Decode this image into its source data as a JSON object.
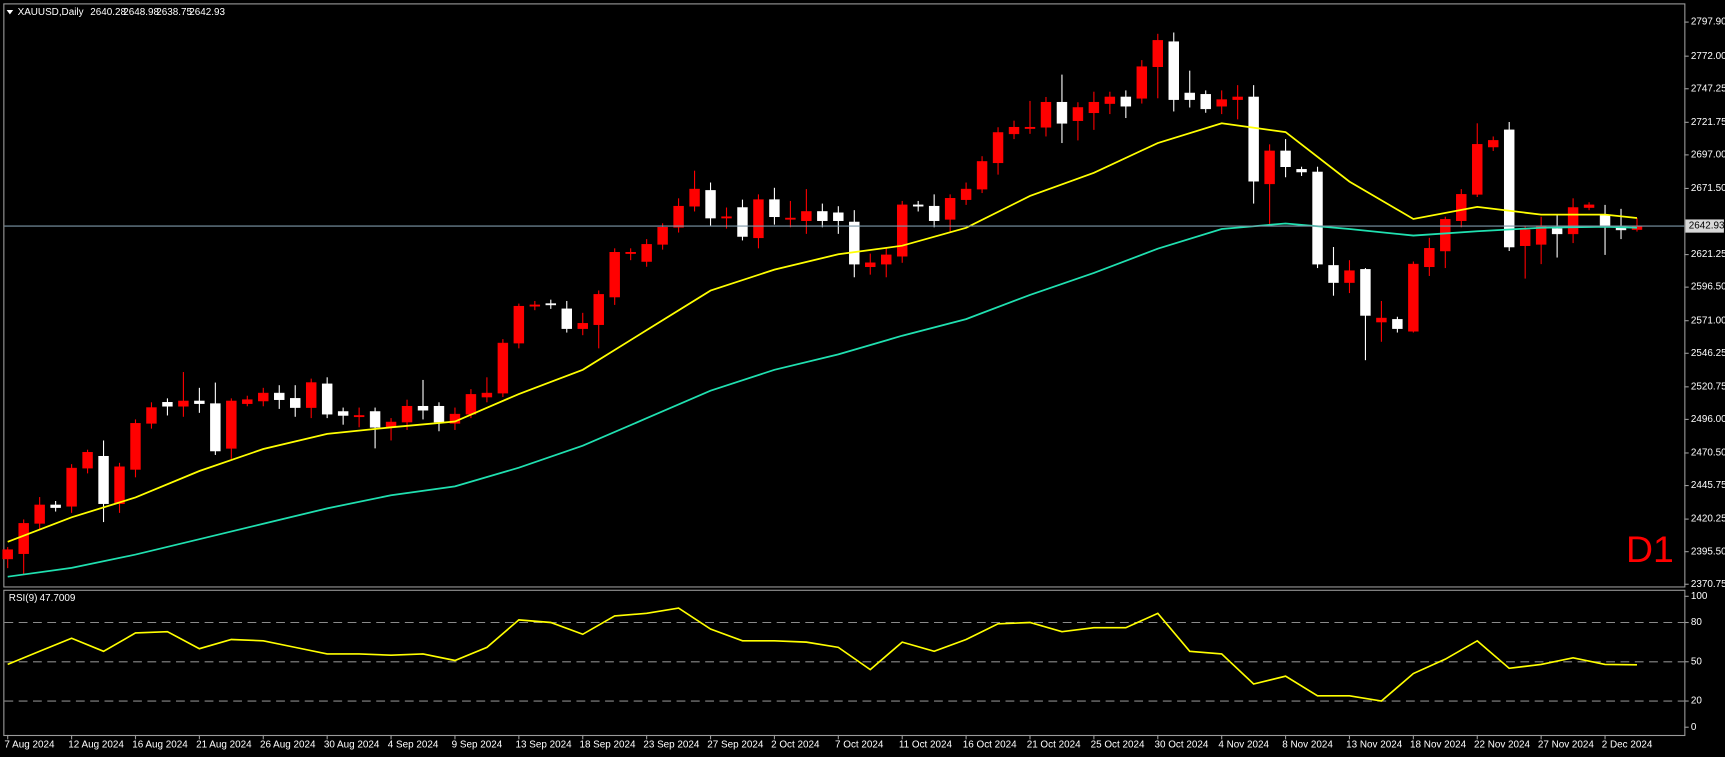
{
  "chart_data": [
    {
      "type": "candlestick",
      "title": "XAUUSD,Daily",
      "annotation": "D1",
      "annotation_color": "#ff0000",
      "up_color": "#ff0000",
      "down_color": "#ffffff",
      "last_price_color": "#7d97a8",
      "categories": [
        "7 Aug 2024",
        null,
        null,
        null,
        "12 Aug 2024",
        null,
        null,
        null,
        "16 Aug 2024",
        null,
        null,
        null,
        "21 Aug 2024",
        null,
        null,
        null,
        "26 Aug 2024",
        null,
        null,
        null,
        "30 Aug 2024",
        null,
        null,
        null,
        "4 Sep 2024",
        null,
        null,
        null,
        "9 Sep 2024",
        null,
        null,
        null,
        "13 Sep 2024",
        null,
        null,
        null,
        "18 Sep 2024",
        null,
        null,
        null,
        "23 Sep 2024",
        null,
        null,
        null,
        "27 Sep 2024",
        null,
        null,
        null,
        "2 Oct 2024",
        null,
        null,
        null,
        "7 Oct 2024",
        null,
        null,
        null,
        "11 Oct 2024",
        null,
        null,
        null,
        "16 Oct 2024",
        null,
        null,
        null,
        "21 Oct 2024",
        null,
        null,
        null,
        "25 Oct 2024",
        null,
        null,
        null,
        "30 Oct 2024",
        null,
        null,
        null,
        "4 Nov 2024",
        null,
        null,
        null,
        "8 Nov 2024",
        null,
        null,
        null,
        "13 Nov 2024",
        null,
        null,
        null,
        "18 Nov 2024",
        null,
        null,
        null,
        "22 Nov 2024",
        null,
        null,
        null,
        "27 Nov 2024",
        null,
        null,
        null,
        "2 Dec 2024",
        null,
        null
      ],
      "open": [
        2390,
        2394,
        2417,
        2431,
        2430,
        2459,
        2468,
        2432,
        2458,
        2493,
        2509,
        2506,
        2510,
        2508,
        2474,
        2508,
        2510,
        2516,
        2512,
        2505,
        2523,
        2502,
        2498,
        2502,
        2490,
        2494,
        2506,
        2506,
        2493,
        2500,
        2513,
        2516,
        2554,
        2582,
        2584,
        2580,
        2565,
        2568,
        2589,
        2622,
        2616,
        2629,
        2642,
        2658,
        2670,
        2649,
        2657,
        2634,
        2663,
        2648,
        2647,
        2654,
        2653,
        2646,
        2612,
        2614,
        2620,
        2659,
        2658,
        2648,
        2663,
        2671,
        2691,
        2713,
        2717,
        2718,
        2737,
        2723,
        2729,
        2736,
        2741,
        2740,
        2764,
        2783,
        2744,
        2743,
        2734,
        2739,
        2741,
        2675,
        2700,
        2686,
        2684,
        2613,
        2600,
        2610,
        2570,
        2572,
        2563,
        2612,
        2624,
        2647,
        2667,
        2703,
        2716,
        2628,
        2629,
        2641,
        2637,
        2657,
        2651,
        2642,
        2640.28
      ],
      "high": [
        2399,
        2420,
        2437,
        2434,
        2462,
        2473,
        2480,
        2463,
        2496,
        2509,
        2512,
        2532,
        2520,
        2524,
        2512,
        2514,
        2520,
        2522,
        2522,
        2527,
        2528,
        2505,
        2505,
        2505,
        2497,
        2511,
        2526,
        2509,
        2505,
        2519,
        2528,
        2557,
        2584,
        2586,
        2587,
        2586,
        2577,
        2594,
        2626,
        2626,
        2633,
        2645,
        2664,
        2685,
        2676,
        2657,
        2663,
        2667,
        2672,
        2662,
        2671,
        2660,
        2658,
        2655,
        2622,
        2626,
        2662,
        2662,
        2667,
        2667,
        2676,
        2696,
        2718,
        2723,
        2738,
        2741,
        2758,
        2737,
        2745,
        2745,
        2746,
        2769,
        2789,
        2790,
        2761,
        2746,
        2746,
        2750,
        2750,
        2705,
        2709,
        2688,
        2688,
        2627,
        2617,
        2611,
        2586,
        2574,
        2616,
        2634,
        2650,
        2671,
        2721,
        2711,
        2722,
        2643,
        2650,
        2651,
        2664,
        2661,
        2659,
        2656,
        2648.98
      ],
      "low": [
        2383,
        2378,
        2412,
        2426,
        2425,
        2455,
        2418,
        2425,
        2452,
        2489,
        2499,
        2498,
        2501,
        2469,
        2466,
        2506,
        2506,
        2504,
        2498,
        2497,
        2497,
        2492,
        2490,
        2474,
        2480,
        2488,
        2496,
        2487,
        2488,
        2497,
        2509,
        2513,
        2550,
        2579,
        2580,
        2562,
        2560,
        2550,
        2583,
        2617,
        2612,
        2625,
        2638,
        2654,
        2643,
        2641,
        2632,
        2626,
        2644,
        2642,
        2637,
        2642,
        2637,
        2604,
        2606,
        2604,
        2615,
        2654,
        2642,
        2638,
        2659,
        2668,
        2682,
        2709,
        2713,
        2711,
        2706,
        2708,
        2716,
        2728,
        2725,
        2736,
        2740,
        2730,
        2733,
        2729,
        2728,
        2724,
        2660,
        2644,
        2680,
        2681,
        2611,
        2590,
        2592,
        2541,
        2555,
        2562,
        2562,
        2605,
        2611,
        2642,
        2665,
        2700,
        2624,
        2603,
        2614,
        2619,
        2630,
        2655,
        2621,
        2633,
        2638.75
      ],
      "close": [
        2397,
        2417,
        2431,
        2429,
        2459,
        2471,
        2432,
        2460,
        2493,
        2505,
        2506,
        2510,
        2508,
        2472,
        2510,
        2511,
        2516,
        2511,
        2505,
        2524,
        2500,
        2499,
        2499,
        2490,
        2494,
        2506,
        2503,
        2494,
        2500,
        2515,
        2516,
        2554,
        2582,
        2583,
        2583,
        2565,
        2569,
        2591,
        2623,
        2623,
        2629,
        2642,
        2658,
        2671,
        2649,
        2650,
        2635,
        2663,
        2650,
        2649,
        2654,
        2647,
        2647,
        2614,
        2615,
        2621,
        2659,
        2658,
        2647,
        2664,
        2671,
        2692,
        2714,
        2718,
        2718,
        2737,
        2721,
        2733,
        2737,
        2741,
        2734,
        2764,
        2784,
        2739,
        2739,
        2732,
        2739,
        2741,
        2677,
        2700,
        2688,
        2684,
        2614,
        2600,
        2609,
        2575,
        2573,
        2565,
        2614,
        2626,
        2648,
        2667,
        2705,
        2708,
        2627,
        2640,
        2643,
        2637,
        2657,
        2659,
        2642,
        2640,
        2642.93
      ],
      "series": [
        {
          "color": "#ffff00",
          "x": [
            0,
            4,
            8,
            12,
            16,
            20,
            24,
            28,
            32,
            36,
            40,
            44,
            48,
            52,
            56,
            60,
            64,
            68,
            72,
            76,
            80,
            84,
            88,
            92,
            96,
            100,
            102
          ],
          "values": [
            2403,
            2421.6,
            2436.7,
            2456.8,
            2473.5,
            2485,
            2490,
            2494.4,
            2515.3,
            2533.7,
            2563.8,
            2593.9,
            2609.8,
            2621.5,
            2628,
            2641.6,
            2665.8,
            2683.4,
            2706,
            2721,
            2714.3,
            2676.7,
            2648.3,
            2657.5,
            2651.6,
            2651.6,
            2649
          ]
        },
        {
          "color": "#20e0b0",
          "x": [
            0,
            4,
            8,
            12,
            16,
            20,
            24,
            28,
            32,
            36,
            40,
            44,
            48,
            52,
            56,
            60,
            64,
            68,
            72,
            76,
            80,
            84,
            88,
            92,
            96,
            100,
            102
          ],
          "values": [
            2376.5,
            2383.2,
            2393.3,
            2405,
            2416.7,
            2428.4,
            2438.4,
            2445.1,
            2459.3,
            2476,
            2496.9,
            2517.8,
            2533.7,
            2545.4,
            2559.6,
            2572.2,
            2590.6,
            2607.3,
            2625.7,
            2640.7,
            2644.9,
            2640.7,
            2635.7,
            2639,
            2641.6,
            2642.4,
            2641.6
          ]
        }
      ],
      "ylim": [
        2369.1,
        2811.3
      ],
      "yticks": [
        {
          "value": 2797.9,
          "label": "2797.90"
        },
        {
          "value": 2772,
          "label": "2772.00"
        },
        {
          "value": 2747.25,
          "label": "2747.25"
        },
        {
          "value": 2721.75,
          "label": "2721.75"
        },
        {
          "value": 2697,
          "label": "2697.00"
        },
        {
          "value": 2671.5,
          "label": "2671.50"
        },
        {
          "value": 2621.25,
          "label": "2621.25"
        },
        {
          "value": 2596.5,
          "label": "2596.50"
        },
        {
          "value": 2571,
          "label": "2571.00"
        },
        {
          "value": 2546.25,
          "label": "2546.25"
        },
        {
          "value": 2520.75,
          "label": "2520.75"
        },
        {
          "value": 2496,
          "label": "2496.00"
        },
        {
          "value": 2470.5,
          "label": "2470.50"
        },
        {
          "value": 2445.75,
          "label": "2445.75"
        },
        {
          "value": 2420.25,
          "label": "2420.25"
        },
        {
          "value": 2395.5,
          "label": "2395.50"
        },
        {
          "value": 2370.75,
          "label": "2370.75"
        }
      ]
    },
    {
      "type": "line",
      "title": "RSI(9)",
      "color": "#ffff00",
      "x": [
        0,
        2,
        4,
        6,
        8,
        10,
        12,
        14,
        16,
        18,
        20,
        22,
        24,
        26,
        28,
        30,
        32,
        34,
        36,
        38,
        40,
        42,
        44,
        46,
        48,
        50,
        52,
        54,
        56,
        58,
        60,
        62,
        64,
        66,
        68,
        70,
        72,
        74,
        76,
        78,
        80,
        82,
        84,
        86,
        88,
        90,
        92,
        94,
        96,
        98,
        100,
        102
      ],
      "values": [
        48,
        58,
        68,
        58,
        72,
        73,
        60,
        67,
        66,
        61,
        56,
        56,
        55,
        56,
        51,
        61,
        82,
        80,
        71,
        85,
        87,
        91,
        75,
        66,
        66,
        65,
        61,
        44,
        65,
        58,
        67,
        79,
        80,
        73,
        76,
        76,
        87,
        58,
        56,
        33,
        39,
        24,
        24,
        20,
        41,
        52,
        66,
        45,
        48,
        53,
        48,
        47.7009
      ],
      "ylim": [
        -5.9,
        104.2
      ],
      "yticks": [
        100,
        80,
        50,
        20,
        0
      ],
      "levels": [
        80,
        50,
        20
      ]
    }
  ]
}
